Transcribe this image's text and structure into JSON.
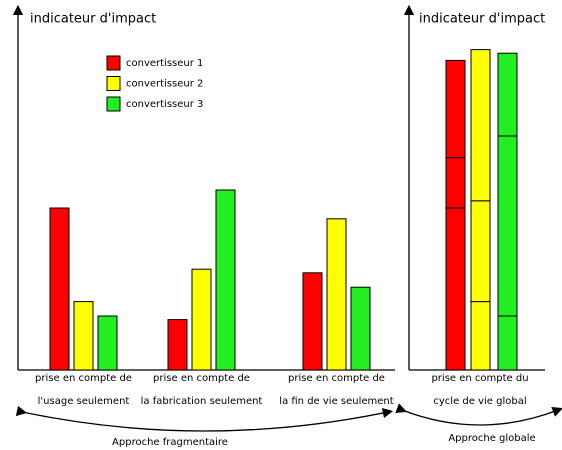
{
  "chart_data": [
    {
      "type": "bar",
      "y_label": "indicateur d'impact",
      "categories": [
        [
          "prise en compte de",
          "l'usage seulement"
        ],
        [
          "prise en compte de",
          "la fabrication seulement"
        ],
        [
          "prise en compte de",
          "la fin de vie seulement"
        ]
      ],
      "series": [
        {
          "name": "convertisseur 1",
          "color": "#ff0000",
          "values": [
            45,
            14,
            27
          ]
        },
        {
          "name": "convertisseur 2",
          "color": "#ffff00",
          "values": [
            19,
            28,
            42
          ]
        },
        {
          "name": "convertisseur 3",
          "color": "#22ee22",
          "values": [
            15,
            50,
            23
          ]
        }
      ],
      "ylim": [
        0,
        100
      ],
      "legend": "top-left",
      "annotation": "Approche fragmentaire"
    },
    {
      "type": "stacked-bar",
      "y_label": "indicateur d'impact",
      "categories": [
        [
          "prise en compte du",
          "cycle de vie global"
        ]
      ],
      "ylim": [
        0,
        100
      ],
      "annotation": "Approche globale"
    }
  ]
}
